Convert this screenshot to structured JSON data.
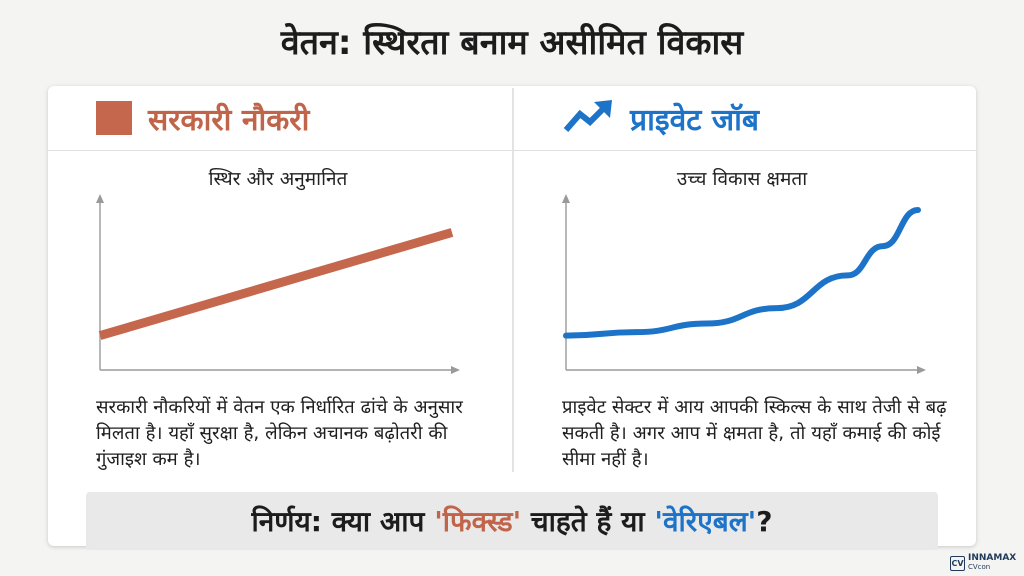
{
  "title": "वेतन: स्थिरता बनाम असीमित विकास",
  "left": {
    "heading": "सरकारी नौकरी",
    "icon": "solid-square-icon",
    "subtitle": "स्थिर और अनुमानित",
    "description": "सरकारी नौकरियों में वेतन एक निर्धारित ढांचे के अनुसार मिलता है। यहाँ सुरक्षा है, लेकिन अचानक बढ़ोतरी की गुंजाइश कम है।",
    "color": "#c4674c"
  },
  "right": {
    "heading": "प्राइवेट जॉब",
    "icon": "trending-up-arrow-icon",
    "subtitle": "उच्च विकास क्षमता",
    "description": "प्राइवेट सेक्टर में आय आपकी स्किल्स के साथ तेजी से बढ़ सकती है। अगर आप में क्षमता है, तो यहाँ कमाई की कोई सीमा नहीं है।",
    "color": "#1d73c8"
  },
  "verdict": {
    "prefix": "निर्णय: क्या आप ",
    "fixed": "'फिक्स्ड'",
    "middle": " चाहते हैं या ",
    "variable": "'वेरिएबल'",
    "suffix": "?"
  },
  "logo": {
    "mark": "CV",
    "name": "INNAMAX",
    "sub": "CVcon"
  },
  "chart_data": [
    {
      "type": "line",
      "trend": "linear",
      "x": [
        0,
        1
      ],
      "y": [
        0.2,
        0.8
      ],
      "color": "#c4674c",
      "grid": false
    },
    {
      "type": "line",
      "trend": "exponential",
      "x": [
        0,
        0.2,
        0.4,
        0.6,
        0.8,
        0.9,
        1
      ],
      "y": [
        0.2,
        0.22,
        0.27,
        0.36,
        0.55,
        0.72,
        0.93
      ],
      "color": "#1d73c8",
      "grid": false
    }
  ]
}
